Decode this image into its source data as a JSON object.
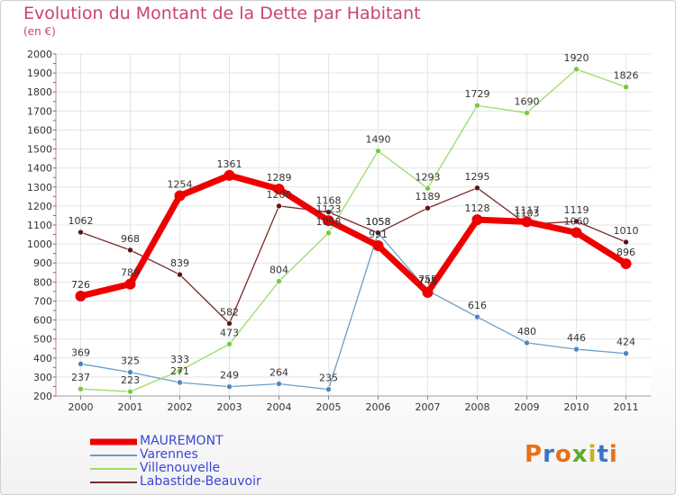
{
  "title": "Evolution du Montant de la Dette par Habitant",
  "subtitle": "(en €)",
  "logo": {
    "text": "Proxiti",
    "colors": [
      "#e8701a",
      "#3a76c4",
      "#e8701a",
      "#5aae2a",
      "#c8b21a",
      "#3a76c4",
      "#e8701a"
    ]
  },
  "chart_data": {
    "type": "line",
    "x": [
      "2000",
      "2001",
      "2002",
      "2003",
      "2004",
      "2005",
      "2006",
      "2007",
      "2008",
      "2009",
      "2010",
      "2011"
    ],
    "ylim": [
      200,
      2000
    ],
    "yticks": [
      200,
      300,
      400,
      500,
      600,
      700,
      800,
      900,
      1000,
      1100,
      1200,
      1300,
      1400,
      1500,
      1600,
      1700,
      1800,
      1900,
      2000
    ],
    "grid": true,
    "legend_position": "bottom-left",
    "series": [
      {
        "name": "MAUREMONT",
        "color": "#ee0000",
        "width": 7,
        "values": [
          726,
          789,
          1254,
          1361,
          1289,
          1123,
          991,
          745,
          1128,
          1117,
          1060,
          896
        ],
        "labels": [
          "726",
          "789",
          "1254",
          "1361",
          "1289",
          "1123",
          "991",
          "745",
          "1128",
          "1117",
          "1060",
          "896"
        ]
      },
      {
        "name": "Varennes",
        "color": "#6a9ecb",
        "width": 1.3,
        "values": [
          369,
          325,
          271,
          249,
          264,
          235,
          1058,
          755,
          616,
          480,
          446,
          424
        ],
        "labels": [
          "369",
          "325",
          "271",
          "249",
          "264",
          "235",
          "1058",
          "755",
          "616",
          "480",
          "446",
          "424"
        ]
      },
      {
        "name": "Villenouvelle",
        "color": "#99dd66",
        "width": 1.3,
        "values": [
          237,
          223,
          333,
          473,
          804,
          1058,
          1490,
          1293,
          1729,
          1690,
          1920,
          1826
        ],
        "labels": [
          "237",
          "223",
          "333",
          "473",
          "804",
          "1058",
          "1490",
          "1293",
          "1729",
          "1690",
          "1920",
          "1826"
        ]
      },
      {
        "name": "Labastide-Beauvoir",
        "color": "#7a2a2a",
        "width": 1.3,
        "values": [
          1062,
          968,
          839,
          582,
          1200,
          1168,
          1058,
          1189,
          1295,
          1103,
          1119,
          1010
        ],
        "labels": [
          "1062",
          "968",
          "839",
          "582",
          "1200",
          "1168",
          "1058",
          "1189",
          "1295",
          "1103",
          "1119",
          "1010"
        ]
      }
    ]
  }
}
